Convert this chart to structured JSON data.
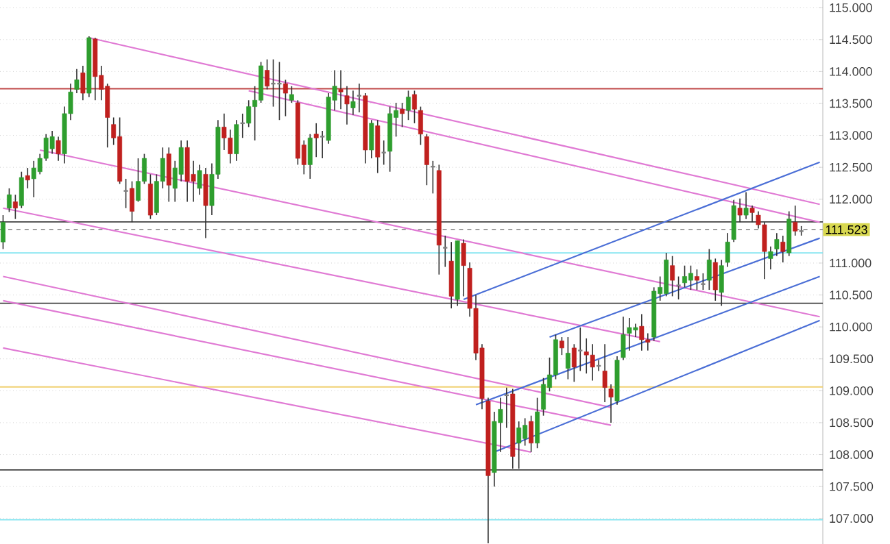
{
  "chart_data": {
    "type": "candlestick",
    "categories": [
      null,
      null,
      null,
      null,
      null,
      null,
      null,
      null,
      null,
      null,
      null,
      null,
      null,
      null,
      null,
      null,
      null,
      null,
      null,
      null,
      null,
      null,
      null,
      null,
      null,
      null,
      null,
      null,
      null,
      null,
      null,
      null,
      null,
      null,
      null,
      null,
      null,
      null,
      null,
      null,
      null,
      null,
      null,
      null,
      null,
      null,
      null,
      null,
      null,
      null,
      null,
      null,
      null,
      null,
      null,
      null,
      null,
      null,
      null,
      null,
      null,
      null,
      null,
      null,
      null,
      null,
      null,
      null,
      null,
      null,
      null,
      null,
      null,
      null,
      null,
      null,
      null,
      null,
      null,
      null,
      null,
      null,
      null,
      null,
      null,
      null,
      null,
      null,
      null,
      null,
      null,
      null,
      null,
      null,
      null,
      null,
      null,
      null,
      null,
      null,
      null,
      null,
      null,
      null,
      null,
      null,
      null,
      null,
      null,
      null,
      null,
      null,
      null,
      null,
      null,
      null,
      null,
      null,
      null,
      null,
      null,
      null,
      null,
      null,
      null,
      null,
      null,
      null,
      null,
      null,
      null,
      null,
      null,
      null
    ],
    "ohlc": [
      [
        111.33,
        111.75,
        111.22,
        111.64
      ],
      [
        111.86,
        112.17,
        111.8,
        112.07
      ],
      [
        111.96,
        112.07,
        111.69,
        111.86
      ],
      [
        111.9,
        112.43,
        111.86,
        112.34
      ],
      [
        112.37,
        112.49,
        112.17,
        112.3
      ],
      [
        112.32,
        112.6,
        112.03,
        112.49
      ],
      [
        112.43,
        112.71,
        112.39,
        112.64
      ],
      [
        112.64,
        113.02,
        112.6,
        112.96
      ],
      [
        112.79,
        113.07,
        112.71,
        112.98
      ],
      [
        112.92,
        112.98,
        112.6,
        112.71
      ],
      [
        112.71,
        113.45,
        112.56,
        113.34
      ],
      [
        113.34,
        113.81,
        113.24,
        113.68
      ],
      [
        113.72,
        114.04,
        113.66,
        113.87
      ],
      [
        113.98,
        114.09,
        113.55,
        113.66
      ],
      [
        113.66,
        114.55,
        113.6,
        114.53
      ],
      [
        114.51,
        114.53,
        113.55,
        113.92
      ],
      [
        113.94,
        114.09,
        113.55,
        113.72
      ],
      [
        113.77,
        113.81,
        112.81,
        113.28
      ],
      [
        113.17,
        113.28,
        112.85,
        112.96
      ],
      [
        112.98,
        113.28,
        112.24,
        112.28
      ],
      [
        112.13,
        112.32,
        111.86,
        112.13
      ],
      [
        112.17,
        112.28,
        111.64,
        111.81
      ],
      [
        111.98,
        112.64,
        111.96,
        112.28
      ],
      [
        112.28,
        112.71,
        112.24,
        112.64
      ],
      [
        112.24,
        112.39,
        111.69,
        111.75
      ],
      [
        111.79,
        112.39,
        111.75,
        112.28
      ],
      [
        112.28,
        112.81,
        112.17,
        112.64
      ],
      [
        112.71,
        112.81,
        111.96,
        112.22
      ],
      [
        112.17,
        112.6,
        111.96,
        112.49
      ],
      [
        112.39,
        112.92,
        112.28,
        112.81
      ],
      [
        112.81,
        112.92,
        111.96,
        112.28
      ],
      [
        112.39,
        112.6,
        111.96,
        112.28
      ],
      [
        112.17,
        112.54,
        112.07,
        112.45
      ],
      [
        112.39,
        112.49,
        111.39,
        111.9
      ],
      [
        111.9,
        112.56,
        111.75,
        112.39
      ],
      [
        112.39,
        113.24,
        112.32,
        113.13
      ],
      [
        113.13,
        113.34,
        112.77,
        112.96
      ],
      [
        112.96,
        113.09,
        112.56,
        112.71
      ],
      [
        112.71,
        113.24,
        112.6,
        113.17
      ],
      [
        113.19,
        113.34,
        112.96,
        113.19
      ],
      [
        113.19,
        113.55,
        113.13,
        113.45
      ],
      [
        113.45,
        113.77,
        112.92,
        113.55
      ],
      [
        113.55,
        114.15,
        113.51,
        114.09
      ],
      [
        114.02,
        114.19,
        113.72,
        113.77
      ],
      [
        113.81,
        114.19,
        113.45,
        113.81
      ],
      [
        113.81,
        114.15,
        113.24,
        113.81
      ],
      [
        113.81,
        113.87,
        113.3,
        113.66
      ],
      [
        113.55,
        113.77,
        113.51,
        113.64
      ],
      [
        113.51,
        113.55,
        112.54,
        112.64
      ],
      [
        112.85,
        112.92,
        112.39,
        112.54
      ],
      [
        112.54,
        113.02,
        112.32,
        112.96
      ],
      [
        113.02,
        113.19,
        112.66,
        112.96
      ],
      [
        112.98,
        113.07,
        112.64,
        112.98
      ],
      [
        112.92,
        113.66,
        112.87,
        113.6
      ],
      [
        113.55,
        114.02,
        113.39,
        113.77
      ],
      [
        113.72,
        114.02,
        113.41,
        113.68
      ],
      [
        113.62,
        113.77,
        113.17,
        113.49
      ],
      [
        113.43,
        113.7,
        113.32,
        113.53
      ],
      [
        113.62,
        113.81,
        113.36,
        113.62
      ],
      [
        113.62,
        113.66,
        112.56,
        112.77
      ],
      [
        112.77,
        113.24,
        112.64,
        113.19
      ],
      [
        113.15,
        113.24,
        112.41,
        112.66
      ],
      [
        112.73,
        112.92,
        112.54,
        112.73
      ],
      [
        112.75,
        113.45,
        112.43,
        113.34
      ],
      [
        113.28,
        113.51,
        112.98,
        113.39
      ],
      [
        113.41,
        113.51,
        113.13,
        113.34
      ],
      [
        113.39,
        113.7,
        113.24,
        113.6
      ],
      [
        113.64,
        113.7,
        113.19,
        113.41
      ],
      [
        113.39,
        113.45,
        112.85,
        113.02
      ],
      [
        112.98,
        113.02,
        112.22,
        112.54
      ],
      [
        112.51,
        112.6,
        112.09,
        112.51
      ],
      [
        112.45,
        112.54,
        110.82,
        111.28
      ],
      [
        111.24,
        111.43,
        110.94,
        111.24
      ],
      [
        111.03,
        111.33,
        110.29,
        110.48
      ],
      [
        110.43,
        111.35,
        110.33,
        111.35
      ],
      [
        111.31,
        111.37,
        110.48,
        110.96
      ],
      [
        110.92,
        111.01,
        110.16,
        110.29
      ],
      [
        110.29,
        110.5,
        109.48,
        109.59
      ],
      [
        109.67,
        109.73,
        108.71,
        108.88
      ],
      [
        108.84,
        108.89,
        106.61,
        107.67
      ],
      [
        107.72,
        108.67,
        107.5,
        108.52
      ],
      [
        108.5,
        108.89,
        108.04,
        108.71
      ],
      [
        108.93,
        109.05,
        108.42,
        108.93
      ],
      [
        108.95,
        109.03,
        107.78,
        107.97
      ],
      [
        108.18,
        108.52,
        107.78,
        108.42
      ],
      [
        108.25,
        108.57,
        108.14,
        108.46
      ],
      [
        108.52,
        108.61,
        108.04,
        108.18
      ],
      [
        108.18,
        108.89,
        108.1,
        108.67
      ],
      [
        108.71,
        109.2,
        108.61,
        109.1
      ],
      [
        109.05,
        109.52,
        108.99,
        109.25
      ],
      [
        109.25,
        109.88,
        109.18,
        109.8
      ],
      [
        109.78,
        109.84,
        109.56,
        109.67
      ],
      [
        109.35,
        109.84,
        109.18,
        109.59
      ],
      [
        109.67,
        109.73,
        109.14,
        109.37
      ],
      [
        109.63,
        109.99,
        109.31,
        109.63
      ],
      [
        109.61,
        109.82,
        109.27,
        109.56
      ],
      [
        109.56,
        109.73,
        109.16,
        109.37
      ],
      [
        109.39,
        109.48,
        109.31,
        109.39
      ],
      [
        109.31,
        109.73,
        108.82,
        109.05
      ],
      [
        109.03,
        109.1,
        108.5,
        108.9
      ],
      [
        108.84,
        109.54,
        108.78,
        109.48
      ],
      [
        109.52,
        110.16,
        109.48,
        109.88
      ],
      [
        109.9,
        110.14,
        109.63,
        109.99
      ],
      [
        109.95,
        110.05,
        109.84,
        109.99
      ],
      [
        110.01,
        110.2,
        109.63,
        109.8
      ],
      [
        109.8,
        109.9,
        109.63,
        109.76
      ],
      [
        109.84,
        110.62,
        109.78,
        110.56
      ],
      [
        110.52,
        110.79,
        110.41,
        110.62
      ],
      [
        110.52,
        111.16,
        110.48,
        111.05
      ],
      [
        110.96,
        111.11,
        110.48,
        110.73
      ],
      [
        110.65,
        110.79,
        110.43,
        110.65
      ],
      [
        110.69,
        110.96,
        110.62,
        110.79
      ],
      [
        110.73,
        110.96,
        110.58,
        110.84
      ],
      [
        110.79,
        110.9,
        110.58,
        110.73
      ],
      [
        110.67,
        110.84,
        110.58,
        110.67
      ],
      [
        110.73,
        111.22,
        110.58,
        111.05
      ],
      [
        111.01,
        111.07,
        110.41,
        110.58
      ],
      [
        110.54,
        111.05,
        110.33,
        110.96
      ],
      [
        111.01,
        111.47,
        110.94,
        111.33
      ],
      [
        111.37,
        111.99,
        111.33,
        111.9
      ],
      [
        111.86,
        112.01,
        111.64,
        111.75
      ],
      [
        111.75,
        112.11,
        111.69,
        111.86
      ],
      [
        111.86,
        111.9,
        111.64,
        111.79
      ],
      [
        111.75,
        111.81,
        111.54,
        111.6
      ],
      [
        111.6,
        111.64,
        110.75,
        111.18
      ],
      [
        111.07,
        111.26,
        110.9,
        111.18
      ],
      [
        111.22,
        111.47,
        111.11,
        111.37
      ],
      [
        111.33,
        111.43,
        111.01,
        111.18
      ],
      [
        111.16,
        111.81,
        111.11,
        111.69
      ],
      [
        111.64,
        111.9,
        111.43,
        111.5
      ],
      [
        111.5,
        111.58,
        111.43,
        111.5
      ],
      null,
      null,
      null
    ],
    "series": [
      {
        "type": "line",
        "color": "#e07ad4",
        "values": [
          null,
          null,
          null,
          null,
          null,
          null,
          null,
          null,
          null,
          null,
          null,
          null,
          null,
          null,
          114.53,
          null,
          null,
          null,
          null,
          null,
          null,
          null,
          null,
          null,
          null,
          null,
          null,
          null,
          null,
          null,
          null,
          null,
          null,
          null,
          null,
          null,
          null,
          null,
          null,
          null,
          null,
          null,
          null,
          null,
          null,
          null,
          null,
          null,
          null,
          null,
          null,
          null,
          null,
          null,
          null,
          null,
          null,
          null,
          null,
          null,
          null,
          null,
          null,
          null,
          null,
          null,
          null,
          null,
          null,
          null,
          null,
          null,
          null,
          null,
          null,
          null,
          null,
          null,
          null,
          null,
          null,
          null,
          null,
          null,
          null,
          null,
          null,
          null,
          null,
          null,
          null,
          null,
          null,
          null,
          null,
          null,
          null,
          null,
          null,
          null,
          null,
          null,
          null,
          null,
          null,
          null,
          null,
          null,
          null,
          null,
          null,
          null,
          null,
          null,
          null,
          null,
          null,
          null,
          null,
          null,
          null,
          null,
          null,
          null,
          null,
          null,
          null,
          null,
          null,
          null,
          null,
          null,
          null,
          111.92
        ]
      },
      {
        "type": "line",
        "color": "#e07ad4",
        "values": [
          null,
          null,
          null,
          null,
          null,
          null,
          null,
          null,
          null,
          null,
          null,
          null,
          null,
          null,
          null,
          null,
          null,
          null,
          null,
          null,
          null,
          null,
          null,
          null,
          null,
          null,
          null,
          null,
          null,
          null,
          null,
          null,
          null,
          null,
          null,
          null,
          null,
          null,
          null,
          null,
          113.7,
          null,
          null,
          null,
          null,
          null,
          null,
          null,
          null,
          null,
          null,
          null,
          null,
          null,
          null,
          null,
          null,
          null,
          null,
          null,
          null,
          null,
          null,
          null,
          null,
          null,
          null,
          null,
          null,
          null,
          null,
          null,
          null,
          null,
          null,
          null,
          null,
          null,
          null,
          null,
          null,
          null,
          null,
          null,
          null,
          null,
          null,
          null,
          null,
          null,
          null,
          null,
          null,
          null,
          null,
          null,
          null,
          null,
          null,
          null,
          null,
          null,
          null,
          null,
          null,
          null,
          null,
          null,
          null,
          null,
          null,
          null,
          null,
          null,
          null,
          null,
          null,
          null,
          null,
          null,
          null,
          null,
          null,
          null,
          null,
          null,
          null,
          null,
          null,
          null,
          null,
          null,
          null,
          111.64
        ]
      },
      {
        "type": "line",
        "color": "#e07ad4",
        "values": [
          null,
          null,
          null,
          null,
          null,
          null,
          112.77,
          null,
          null,
          null,
          null,
          null,
          null,
          null,
          null,
          null,
          null,
          null,
          null,
          null,
          null,
          null,
          null,
          null,
          null,
          null,
          null,
          null,
          null,
          null,
          null,
          null,
          null,
          null,
          null,
          null,
          null,
          null,
          null,
          null,
          null,
          null,
          null,
          null,
          null,
          null,
          null,
          null,
          null,
          null,
          null,
          null,
          null,
          null,
          null,
          null,
          null,
          null,
          null,
          null,
          null,
          null,
          null,
          null,
          null,
          null,
          null,
          null,
          null,
          null,
          null,
          null,
          null,
          null,
          null,
          null,
          null,
          null,
          null,
          null,
          null,
          null,
          null,
          null,
          null,
          null,
          null,
          null,
          null,
          null,
          null,
          null,
          null,
          null,
          null,
          null,
          null,
          null,
          null,
          null,
          null,
          null,
          null,
          null,
          null,
          null,
          null,
          null,
          null,
          null,
          null,
          null,
          null,
          null,
          null,
          null,
          null,
          null,
          null,
          null,
          null,
          null,
          null,
          null,
          null,
          null,
          null,
          null,
          null,
          null,
          null,
          null,
          null,
          110.16
        ]
      },
      {
        "type": "line",
        "color": "#e07ad4",
        "values": [
          111.86,
          null,
          null,
          null,
          null,
          null,
          null,
          null,
          null,
          null,
          null,
          null,
          null,
          null,
          null,
          null,
          null,
          null,
          null,
          null,
          null,
          null,
          null,
          null,
          null,
          null,
          null,
          null,
          null,
          null,
          null,
          null,
          null,
          null,
          null,
          null,
          null,
          null,
          null,
          null,
          null,
          null,
          null,
          null,
          null,
          null,
          null,
          null,
          null,
          null,
          null,
          null,
          null,
          null,
          null,
          null,
          null,
          null,
          null,
          null,
          null,
          null,
          null,
          null,
          null,
          null,
          null,
          null,
          null,
          null,
          null,
          null,
          null,
          null,
          null,
          null,
          null,
          null,
          null,
          null,
          null,
          null,
          null,
          null,
          null,
          null,
          null,
          null,
          null,
          null,
          null,
          null,
          null,
          null,
          null,
          null,
          null,
          null,
          null,
          null,
          null,
          null,
          null,
          null,
          null,
          null,
          null,
          109.77,
          null,
          null,
          null,
          null,
          null,
          null,
          null,
          null,
          null,
          null,
          null,
          null,
          null,
          null,
          null,
          null,
          null,
          null,
          null,
          null,
          null,
          null,
          null,
          null,
          null,
          null
        ]
      },
      {
        "type": "line",
        "color": "#e07ad4",
        "values": [
          110.79,
          null,
          null,
          null,
          null,
          null,
          null,
          null,
          null,
          null,
          null,
          null,
          null,
          null,
          null,
          null,
          null,
          null,
          null,
          null,
          null,
          null,
          null,
          null,
          null,
          null,
          null,
          null,
          null,
          null,
          null,
          null,
          null,
          null,
          null,
          null,
          null,
          null,
          null,
          null,
          null,
          null,
          null,
          null,
          null,
          null,
          null,
          null,
          null,
          null,
          null,
          null,
          null,
          null,
          null,
          null,
          null,
          null,
          null,
          null,
          null,
          null,
          null,
          null,
          null,
          null,
          null,
          null,
          null,
          null,
          null,
          null,
          null,
          null,
          null,
          null,
          null,
          null,
          null,
          null,
          null,
          null,
          null,
          null,
          null,
          null,
          null,
          null,
          null,
          null,
          null,
          null,
          null,
          null,
          null,
          null,
          null,
          null,
          null,
          108.74,
          null,
          null,
          null,
          null,
          null,
          null,
          null,
          null,
          null,
          null,
          null,
          null,
          null,
          null,
          null,
          null,
          null,
          null,
          null,
          null,
          null,
          null,
          null,
          null,
          null,
          null,
          null,
          null,
          null,
          null,
          null,
          null,
          null,
          null
        ]
      },
      {
        "type": "line",
        "color": "#e07ad4",
        "values": [
          110.41,
          null,
          null,
          null,
          null,
          null,
          null,
          null,
          null,
          null,
          null,
          null,
          null,
          null,
          null,
          null,
          null,
          null,
          null,
          null,
          null,
          null,
          null,
          null,
          null,
          null,
          null,
          null,
          null,
          null,
          null,
          null,
          null,
          null,
          null,
          null,
          null,
          null,
          null,
          null,
          null,
          null,
          null,
          null,
          null,
          null,
          null,
          null,
          null,
          null,
          null,
          null,
          null,
          null,
          null,
          null,
          null,
          null,
          null,
          null,
          null,
          null,
          null,
          null,
          null,
          null,
          null,
          null,
          null,
          null,
          null,
          null,
          null,
          null,
          null,
          null,
          null,
          null,
          null,
          null,
          null,
          null,
          null,
          null,
          null,
          null,
          null,
          null,
          null,
          null,
          null,
          null,
          null,
          null,
          null,
          null,
          null,
          null,
          null,
          108.46,
          null,
          null,
          null,
          null,
          null,
          null,
          null,
          null,
          null,
          null,
          null,
          null,
          null,
          null,
          null,
          null,
          null,
          null,
          null,
          null,
          null,
          null,
          null,
          null,
          null,
          null,
          null,
          null,
          null,
          null,
          null,
          null,
          null,
          null
        ]
      },
      {
        "type": "line",
        "color": "#e07ad4",
        "values": [
          109.67,
          null,
          null,
          null,
          null,
          null,
          null,
          null,
          null,
          null,
          null,
          null,
          null,
          null,
          null,
          null,
          null,
          null,
          null,
          null,
          null,
          null,
          null,
          null,
          null,
          null,
          null,
          null,
          null,
          null,
          null,
          null,
          null,
          null,
          null,
          null,
          null,
          null,
          null,
          null,
          null,
          null,
          null,
          null,
          null,
          null,
          null,
          null,
          null,
          null,
          null,
          null,
          null,
          null,
          null,
          null,
          null,
          null,
          null,
          null,
          null,
          null,
          null,
          null,
          null,
          null,
          null,
          null,
          null,
          null,
          null,
          null,
          null,
          null,
          null,
          null,
          null,
          null,
          null,
          null,
          null,
          null,
          null,
          null,
          null,
          null,
          108.04,
          null,
          null,
          null,
          null,
          null,
          null,
          null,
          null,
          null,
          null,
          null,
          null,
          null,
          null,
          null,
          null,
          null,
          null,
          null,
          null,
          null,
          null,
          null,
          null,
          null,
          null,
          null,
          null,
          null,
          null,
          null,
          null,
          null,
          null,
          null,
          null,
          null,
          null,
          null,
          null,
          null,
          null,
          null,
          null,
          null,
          null,
          null
        ]
      },
      {
        "type": "line",
        "color": "#4a6ed6",
        "values": [
          null,
          null,
          null,
          null,
          null,
          null,
          null,
          null,
          null,
          null,
          null,
          null,
          null,
          null,
          null,
          null,
          null,
          null,
          null,
          null,
          null,
          null,
          null,
          null,
          null,
          null,
          null,
          null,
          null,
          null,
          null,
          null,
          null,
          null,
          null,
          null,
          null,
          null,
          null,
          null,
          null,
          null,
          null,
          null,
          null,
          null,
          null,
          null,
          null,
          null,
          null,
          null,
          null,
          null,
          null,
          null,
          null,
          null,
          null,
          null,
          null,
          null,
          null,
          null,
          null,
          null,
          null,
          null,
          null,
          null,
          null,
          null,
          null,
          null,
          null,
          110.43,
          null,
          null,
          null,
          null,
          null,
          null,
          null,
          null,
          null,
          null,
          null,
          null,
          null,
          null,
          null,
          null,
          null,
          null,
          null,
          null,
          null,
          null,
          null,
          null,
          null,
          null,
          null,
          null,
          null,
          null,
          null,
          null,
          null,
          null,
          null,
          null,
          null,
          null,
          null,
          null,
          null,
          null,
          null,
          null,
          null,
          null,
          null,
          null,
          null,
          null,
          null,
          null,
          null,
          null,
          null,
          null,
          null,
          112.58
        ]
      },
      {
        "type": "line",
        "color": "#4a6ed6",
        "values": [
          null,
          null,
          null,
          null,
          null,
          null,
          null,
          null,
          null,
          null,
          null,
          null,
          null,
          null,
          null,
          null,
          null,
          null,
          null,
          null,
          null,
          null,
          null,
          null,
          null,
          null,
          null,
          null,
          null,
          null,
          null,
          null,
          null,
          null,
          null,
          null,
          null,
          null,
          null,
          null,
          null,
          null,
          null,
          null,
          null,
          null,
          null,
          null,
          null,
          null,
          null,
          null,
          null,
          null,
          null,
          null,
          null,
          null,
          null,
          null,
          null,
          null,
          null,
          null,
          null,
          null,
          null,
          null,
          null,
          null,
          null,
          null,
          null,
          null,
          null,
          null,
          null,
          null,
          null,
          null,
          null,
          null,
          null,
          null,
          null,
          null,
          null,
          null,
          null,
          109.84,
          null,
          null,
          null,
          null,
          null,
          null,
          null,
          null,
          null,
          null,
          null,
          null,
          null,
          null,
          null,
          null,
          null,
          null,
          null,
          null,
          null,
          null,
          null,
          null,
          null,
          null,
          null,
          null,
          null,
          null,
          null,
          null,
          null,
          null,
          null,
          null,
          null,
          null,
          null,
          null,
          null,
          null,
          null,
          111.39
        ]
      },
      {
        "type": "line",
        "color": "#4a6ed6",
        "values": [
          null,
          null,
          null,
          null,
          null,
          null,
          null,
          null,
          null,
          null,
          null,
          null,
          null,
          null,
          null,
          null,
          null,
          null,
          null,
          null,
          null,
          null,
          null,
          null,
          null,
          null,
          null,
          null,
          null,
          null,
          null,
          null,
          null,
          null,
          null,
          null,
          null,
          null,
          null,
          null,
          null,
          null,
          null,
          null,
          null,
          null,
          null,
          null,
          null,
          null,
          null,
          null,
          null,
          null,
          null,
          null,
          null,
          null,
          null,
          null,
          null,
          null,
          null,
          null,
          null,
          null,
          null,
          null,
          null,
          null,
          null,
          null,
          null,
          null,
          null,
          null,
          null,
          108.78,
          null,
          null,
          null,
          null,
          null,
          null,
          null,
          null,
          null,
          null,
          null,
          null,
          null,
          null,
          null,
          null,
          null,
          null,
          null,
          null,
          null,
          null,
          null,
          null,
          null,
          null,
          null,
          null,
          null,
          null,
          null,
          null,
          null,
          null,
          null,
          null,
          null,
          null,
          null,
          null,
          null,
          null,
          null,
          null,
          null,
          null,
          null,
          null,
          null,
          null,
          null,
          null,
          null,
          null,
          null,
          110.79
        ]
      },
      {
        "type": "line",
        "color": "#4a6ed6",
        "values": [
          null,
          null,
          null,
          null,
          null,
          null,
          null,
          null,
          null,
          null,
          null,
          null,
          null,
          null,
          null,
          null,
          null,
          null,
          null,
          null,
          null,
          null,
          null,
          null,
          null,
          null,
          null,
          null,
          null,
          null,
          null,
          null,
          null,
          null,
          null,
          null,
          null,
          null,
          null,
          null,
          null,
          null,
          null,
          null,
          null,
          null,
          null,
          null,
          null,
          null,
          null,
          null,
          null,
          null,
          null,
          null,
          null,
          null,
          null,
          null,
          null,
          null,
          null,
          null,
          null,
          null,
          null,
          null,
          null,
          null,
          null,
          null,
          null,
          null,
          null,
          null,
          null,
          null,
          null,
          null,
          108.04,
          null,
          null,
          null,
          null,
          null,
          null,
          null,
          null,
          null,
          null,
          null,
          null,
          null,
          null,
          null,
          null,
          null,
          null,
          null,
          null,
          null,
          null,
          null,
          null,
          null,
          null,
          null,
          null,
          null,
          null,
          null,
          null,
          null,
          null,
          null,
          null,
          null,
          null,
          null,
          null,
          null,
          null,
          null,
          null,
          null,
          null,
          null,
          null,
          null,
          null,
          null,
          null,
          110.1
        ]
      }
    ],
    "ref_lines": [
      {
        "axis": "y",
        "value": 113.73,
        "color": "#c04848"
      },
      {
        "axis": "y",
        "value": 111.645,
        "color": "#404040"
      },
      {
        "axis": "y",
        "value": 111.523,
        "label": "111.523",
        "color": "#909090",
        "line_style": "dashed"
      },
      {
        "axis": "y",
        "value": 111.16,
        "color": "#80e4f0"
      },
      {
        "axis": "y",
        "value": 110.37,
        "color": "#404040"
      },
      {
        "axis": "y",
        "value": 109.06,
        "color": "#f0d070"
      },
      {
        "axis": "y",
        "value": 107.76,
        "color": "#404040"
      },
      {
        "axis": "y",
        "value": 106.98,
        "color": "#80e4f0"
      }
    ],
    "ylim": [
      106.6,
      115.12
    ],
    "yticks": [
      {
        "value": 107,
        "label": "107.000"
      },
      {
        "value": 107.5,
        "label": "107.500"
      },
      {
        "value": 108,
        "label": "108.000"
      },
      {
        "value": 108.5,
        "label": "108.500"
      },
      {
        "value": 109,
        "label": "109.000"
      },
      {
        "value": 109.5,
        "label": "109.500"
      },
      {
        "value": 110,
        "label": "110.000"
      },
      {
        "value": 110.5,
        "label": "110.500"
      },
      {
        "value": 111,
        "label": "111.000"
      },
      {
        "value": 112,
        "label": "112.000"
      },
      {
        "value": 112.5,
        "label": "112.500"
      },
      {
        "value": 113,
        "label": "113.000"
      },
      {
        "value": 113.5,
        "label": "113.500"
      },
      {
        "value": 114,
        "label": "114.000"
      },
      {
        "value": 114.5,
        "label": "114.500"
      },
      {
        "value": 115,
        "label": "115.000"
      }
    ],
    "grid": "y",
    "tick_labels": "y"
  }
}
